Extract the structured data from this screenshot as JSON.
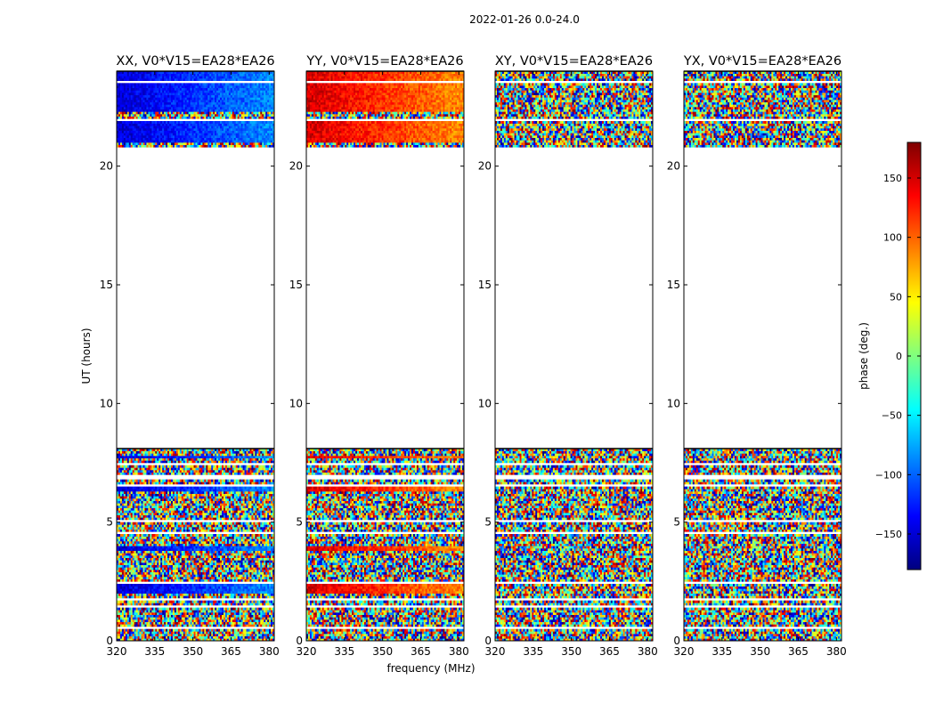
{
  "figure": {
    "suptitle": "2022-01-26 0.0-24.0",
    "xlabel": "frequency (MHz)",
    "ylabel": "UT (hours)"
  },
  "colorbar": {
    "label": "phase (deg.)",
    "vmin": -180,
    "vmax": 180,
    "ticks": [
      -150,
      -100,
      -50,
      0,
      50,
      100,
      150
    ],
    "tick_labels": [
      "−150",
      "−100",
      "−50",
      "0",
      "50",
      "100",
      "150"
    ],
    "colormap": [
      "#00007f",
      "#0000ff",
      "#007fff",
      "#00ffff",
      "#7fff7f",
      "#ffff00",
      "#ff7f00",
      "#ff0000",
      "#7f0000"
    ]
  },
  "chart_data": {
    "type": "heatmap",
    "value": "visibility phase (deg)",
    "baseline": "V0*V15=EA28*EA26",
    "xlim": [
      320,
      382
    ],
    "x_ticks": [
      320,
      335,
      350,
      365,
      380
    ],
    "ylim": [
      0,
      24
    ],
    "y_ticks": [
      0,
      5,
      10,
      15,
      20
    ],
    "data_blocks_ut_hours": [
      [
        0,
        8.1
      ],
      [
        20.8,
        24
      ]
    ],
    "no_data_ut_hours": [
      8.1,
      20.8
    ],
    "panels": [
      {
        "title": "XX, V0*V15=EA28*EA26",
        "pol": "XX",
        "coherent_phase_deg": -150,
        "coherent_ut_hours": [
          [
            2.0,
            2.45
          ],
          [
            3.85,
            4.05
          ],
          [
            6.3,
            6.5
          ],
          [
            7.65,
            7.8
          ],
          [
            21.0,
            22.0
          ],
          [
            22.3,
            23.5
          ],
          [
            23.6,
            24.0
          ]
        ]
      },
      {
        "title": "YY, V0*V15=EA28*EA26",
        "pol": "YY",
        "coherent_phase_deg": 150,
        "coherent_ut_hours": [
          [
            2.0,
            2.45
          ],
          [
            3.85,
            4.05
          ],
          [
            6.3,
            6.5
          ],
          [
            7.65,
            7.8
          ],
          [
            21.0,
            22.0
          ],
          [
            22.3,
            23.5
          ],
          [
            23.6,
            24.0
          ]
        ]
      },
      {
        "title": "XY, V0*V15=EA28*EA26",
        "pol": "XY",
        "coherent_phase_deg": null,
        "coherent_ut_hours": []
      },
      {
        "title": "YX, V0*V15=EA28*EA26",
        "pol": "YX",
        "coherent_phase_deg": null,
        "coherent_ut_hours": []
      }
    ]
  }
}
